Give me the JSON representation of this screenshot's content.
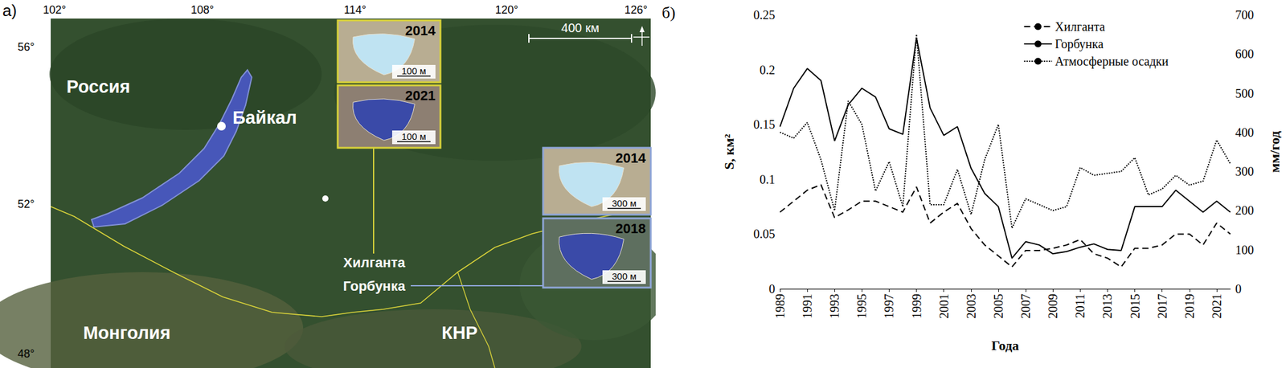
{
  "map": {
    "panel_label": "а)",
    "longitude_labels": [
      "102°",
      "108°",
      "114°",
      "120°",
      "126°"
    ],
    "latitude_labels": [
      "56°",
      "52°",
      "48°"
    ],
    "country_labels": [
      "Россия",
      "Монголия",
      "КНР"
    ],
    "lake_label": "Байкал",
    "site_labels": [
      "Хилганта",
      "Горбунка"
    ],
    "scale_bar": "400 км",
    "insets": [
      {
        "lake": "Хилганта",
        "year": "2014",
        "scale": "100 м"
      },
      {
        "lake": "Хилганта",
        "year": "2021",
        "scale": "100 м"
      },
      {
        "lake": "Горбунка",
        "year": "2014",
        "scale": "300 м"
      },
      {
        "lake": "Горбунка",
        "year": "2018",
        "scale": "300 м"
      }
    ]
  },
  "chart_data": {
    "type": "line",
    "title": "б)",
    "xlabel": "Года",
    "ylabel": "S, км²",
    "y2label": "мм/год",
    "x": [
      1989,
      1990,
      1991,
      1992,
      1993,
      1994,
      1995,
      1996,
      1997,
      1998,
      1999,
      2000,
      2001,
      2002,
      2003,
      2004,
      2005,
      2006,
      2007,
      2008,
      2009,
      2010,
      2011,
      2012,
      2013,
      2014,
      2015,
      2016,
      2017,
      2018,
      2019,
      2020,
      2021,
      2022
    ],
    "xlim": [
      1989,
      2022
    ],
    "xticks": [
      1989,
      1991,
      1993,
      1995,
      1997,
      1999,
      2001,
      2003,
      2005,
      2007,
      2009,
      2011,
      2013,
      2015,
      2017,
      2019,
      2021
    ],
    "ylim": [
      0,
      0.25
    ],
    "yticks": [
      0,
      0.05,
      0.1,
      0.15,
      0.2,
      0.25
    ],
    "y2lim": [
      0,
      700
    ],
    "y2ticks": [
      0,
      100,
      200,
      300,
      400,
      500,
      600,
      700
    ],
    "grid": false,
    "legend": "upper right",
    "series": [
      {
        "name": "Хилганта",
        "color": "#000000",
        "line_style": "dashed",
        "marker": "none",
        "values": [
          0.07,
          0.08,
          0.09,
          0.095,
          0.065,
          0.072,
          0.08,
          0.08,
          0.075,
          0.07,
          0.093,
          0.06,
          0.07,
          0.078,
          0.055,
          0.04,
          0.03,
          0.02,
          0.035,
          0.035,
          0.037,
          0.04,
          0.045,
          0.032,
          0.028,
          0.02,
          0.037,
          0.037,
          0.04,
          0.05,
          0.05,
          0.04,
          0.06,
          0.05
        ]
      },
      {
        "name": "Горбунка",
        "color": "#000000",
        "line_style": "solid",
        "marker": "none",
        "values": [
          0.148,
          0.183,
          0.201,
          0.19,
          0.135,
          0.168,
          0.183,
          0.175,
          0.146,
          0.141,
          0.229,
          0.165,
          0.14,
          0.148,
          0.11,
          0.087,
          0.075,
          0.028,
          0.043,
          0.04,
          0.032,
          0.034,
          0.038,
          0.041,
          0.036,
          0.035,
          0.075,
          0.075,
          0.075,
          0.09,
          0.08,
          0.07,
          0.08,
          0.07
        ]
      },
      {
        "name": "Атмосферные осадки",
        "color": "#000000",
        "line_style": "dotted",
        "marker": "none",
        "axis": "y2",
        "values": [
          400,
          385,
          425,
          330,
          200,
          480,
          420,
          250,
          325,
          210,
          650,
          215,
          215,
          305,
          190,
          330,
          420,
          155,
          230,
          215,
          200,
          210,
          310,
          290,
          295,
          300,
          335,
          240,
          255,
          290,
          265,
          275,
          380,
          320
        ]
      }
    ]
  }
}
